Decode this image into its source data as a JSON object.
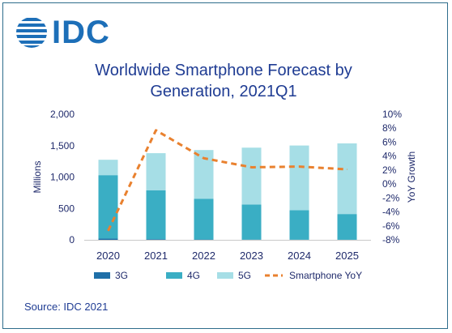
{
  "logo": {
    "text": "IDC"
  },
  "title_line1": "Worldwide Smartphone Forecast by",
  "title_line2": "Generation, 2021Q1",
  "source": "Source: IDC 2021",
  "colors": {
    "g3": "#1f6fa8",
    "g4": "#3aaec4",
    "g5": "#a6dee6",
    "yoy": "#e9812f",
    "text": "#1f2a6b",
    "title": "#1f3c93",
    "logo": "#1d6fb8"
  },
  "chart_data": {
    "type": "bar",
    "stacked": true,
    "categories": [
      "2020",
      "2021",
      "2022",
      "2023",
      "2024",
      "2025"
    ],
    "series": [
      {
        "name": "3G",
        "values": [
          20,
          10,
          5,
          3,
          2,
          1
        ]
      },
      {
        "name": "4G",
        "values": [
          1010,
          780,
          650,
          560,
          470,
          410
        ]
      },
      {
        "name": "5G",
        "values": [
          245,
          590,
          775,
          905,
          1030,
          1125
        ]
      }
    ],
    "line_series": {
      "name": "Smartphone YoY",
      "axis": "right",
      "style": "dashed",
      "values": [
        -6.7,
        7.7,
        3.7,
        2.4,
        2.5,
        2.1
      ]
    },
    "ylabel": "Millions",
    "y2label": "YoY Growth",
    "ylim": [
      0,
      2000
    ],
    "yticks": [
      "0",
      "500",
      "1,000",
      "1,500",
      "2,000"
    ],
    "y2lim": [
      -8,
      10
    ],
    "y2ticks": [
      "-8%",
      "-6%",
      "-4%",
      "-2%",
      "0%",
      "2%",
      "4%",
      "6%",
      "8%",
      "10%"
    ],
    "grid": false,
    "legend_position": "bottom"
  }
}
